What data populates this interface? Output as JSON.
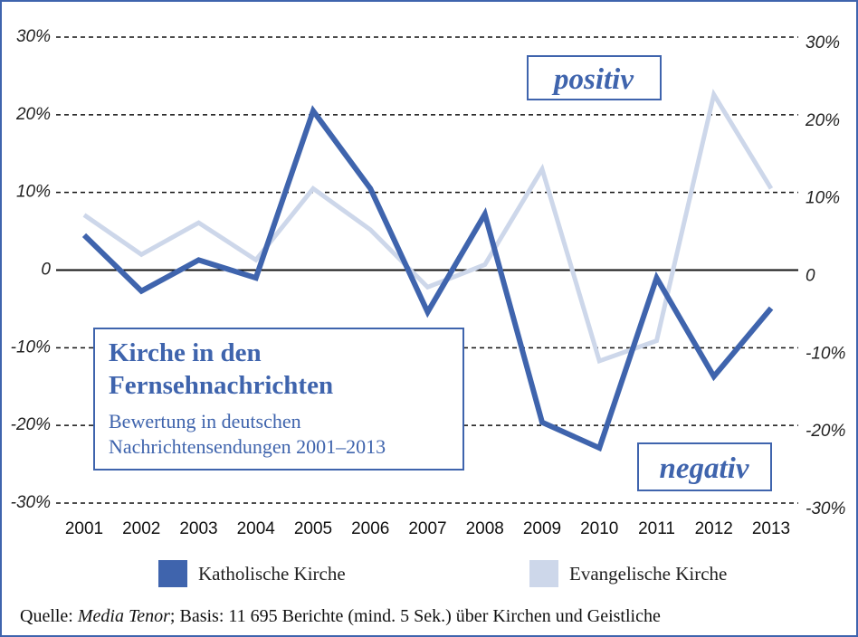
{
  "chart_data": {
    "type": "line",
    "title": "Kirche in den Fernsehnachrichten",
    "subtitle": "Bewertung in deutschen Nachrichtensendungen 2001–2013",
    "annotations": [
      "positiv",
      "negativ"
    ],
    "source": {
      "prefix": "Quelle: ",
      "name": "Media Tenor",
      "text": "; Basis: 11 695 Berichte (mind. 5 Sek.) über Kirchen und Geistliche"
    },
    "categories": [
      "2001",
      "2002",
      "2003",
      "2004",
      "2005",
      "2006",
      "2007",
      "2008",
      "2009",
      "2010",
      "2011",
      "2012",
      "2013"
    ],
    "series": [
      {
        "name": "Katholische Kirche",
        "color": "#3f64ad",
        "values": [
          4.5,
          -2.7,
          1.3,
          -1,
          20.5,
          10.5,
          -5.4,
          7.2,
          -19.6,
          -22.9,
          -1,
          -13.7,
          -4.9
        ]
      },
      {
        "name": "Evangelische Kirche",
        "color": "#cdd7ea",
        "values": [
          7.1,
          2,
          6.1,
          1.3,
          10.5,
          5.2,
          -2.2,
          0.7,
          13,
          -11.7,
          -9.1,
          22.6,
          10.5
        ]
      }
    ],
    "ylim": [
      -30,
      30
    ],
    "yticks": [
      {
        "value": 30,
        "label": "30%"
      },
      {
        "value": 20,
        "label": "20%"
      },
      {
        "value": 10,
        "label": "10%"
      },
      0,
      {
        "value": -10,
        "label": "-10%"
      },
      {
        "value": -20,
        "label": "-20%"
      },
      {
        "value": -30,
        "label": "-30%"
      }
    ],
    "grid": true
  }
}
